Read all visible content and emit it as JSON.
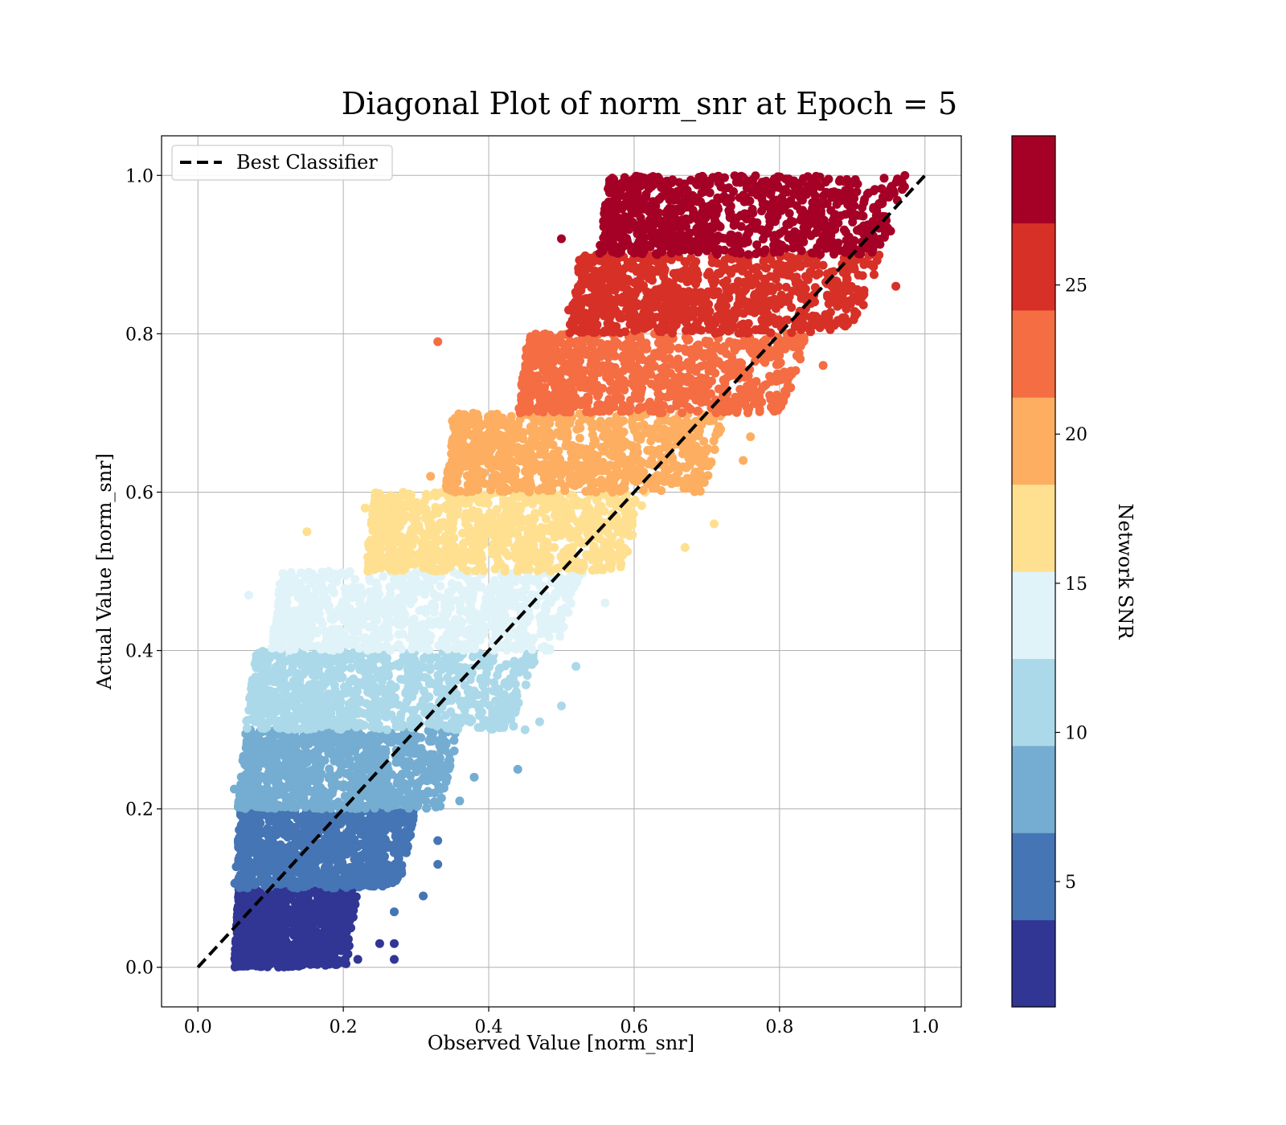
{
  "chart_data": {
    "type": "scatter",
    "title": "Diagonal Plot of norm_snr at Epoch = 5",
    "xlabel": "Observed Value [norm_snr]",
    "ylabel": "Actual Value [norm_snr]",
    "xlim": [
      -0.05,
      1.05
    ],
    "ylim": [
      -0.05,
      1.05
    ],
    "xticks": [
      0.0,
      0.2,
      0.4,
      0.6,
      0.8,
      1.0
    ],
    "yticks": [
      0.0,
      0.2,
      0.4,
      0.6,
      0.8,
      1.0
    ],
    "xtick_labels": [
      "0.0",
      "0.2",
      "0.4",
      "0.6",
      "0.8",
      "1.0"
    ],
    "ytick_labels": [
      "0.0",
      "0.2",
      "0.4",
      "0.6",
      "0.8",
      "1.0"
    ],
    "grid": true,
    "legend": {
      "placement": "top-left",
      "entries": [
        {
          "label": "Best Classifier",
          "style": "dashed",
          "color": "#000000"
        }
      ]
    },
    "reference_line": {
      "name": "Best Classifier",
      "x": [
        0.0,
        1.0
      ],
      "y": [
        0.0,
        1.0
      ]
    },
    "colorbar": {
      "label": "Network SNR",
      "range": [
        0.8,
        30.0
      ],
      "ticks": [
        5,
        10,
        15,
        20,
        25
      ],
      "tick_labels": [
        "5",
        "10",
        "15",
        "20",
        "25"
      ],
      "colormap": "RdYlBu_r (10 discrete levels)",
      "colors": [
        "#313695",
        "#4575b4",
        "#74add1",
        "#abd9e9",
        "#e0f3f8",
        "#fee090",
        "#fdae61",
        "#f46d43",
        "#d73027",
        "#a50026"
      ]
    },
    "series": [
      {
        "band_y": [
          0.0,
          0.1
        ],
        "x_range": [
          0.05,
          0.22
        ],
        "color": "#313695",
        "outliers": [
          [
            0.27,
            0.01
          ],
          [
            0.22,
            0.01
          ],
          [
            0.27,
            0.03
          ],
          [
            0.25,
            0.03
          ]
        ]
      },
      {
        "band_y": [
          0.1,
          0.2
        ],
        "x_range": [
          0.05,
          0.3
        ],
        "color": "#4575b4",
        "outliers": [
          [
            0.31,
            0.09
          ],
          [
            0.33,
            0.13
          ],
          [
            0.33,
            0.16
          ],
          [
            0.27,
            0.07
          ]
        ]
      },
      {
        "band_y": [
          0.2,
          0.3
        ],
        "x_range": [
          0.055,
          0.36
        ],
        "color": "#74add1",
        "outliers": [
          [
            0.05,
            0.225
          ],
          [
            0.44,
            0.25
          ],
          [
            0.36,
            0.21
          ],
          [
            0.38,
            0.24
          ]
        ]
      },
      {
        "band_y": [
          0.3,
          0.4
        ],
        "x_range": [
          0.065,
          0.47
        ],
        "color": "#abd9e9",
        "outliers": [
          [
            0.52,
            0.38
          ],
          [
            0.5,
            0.33
          ],
          [
            0.47,
            0.31
          ],
          [
            0.45,
            0.3
          ]
        ]
      },
      {
        "band_y": [
          0.4,
          0.5
        ],
        "x_range": [
          0.1,
          0.53
        ],
        "color": "#e0f3f8",
        "outliers": [
          [
            0.07,
            0.47
          ],
          [
            0.15,
            0.49
          ],
          [
            0.56,
            0.46
          ],
          [
            0.18,
            0.5
          ]
        ]
      },
      {
        "band_y": [
          0.5,
          0.6
        ],
        "x_range": [
          0.23,
          0.62
        ],
        "color": "#fee090",
        "outliers": [
          [
            0.15,
            0.55
          ],
          [
            0.23,
            0.58
          ],
          [
            0.67,
            0.53
          ],
          [
            0.71,
            0.56
          ]
        ]
      },
      {
        "band_y": [
          0.6,
          0.7
        ],
        "x_range": [
          0.34,
          0.73
        ],
        "color": "#fdae61",
        "outliers": [
          [
            0.35,
            0.69
          ],
          [
            0.32,
            0.62
          ],
          [
            0.75,
            0.64
          ],
          [
            0.76,
            0.67
          ]
        ]
      },
      {
        "band_y": [
          0.7,
          0.8
        ],
        "x_range": [
          0.44,
          0.84
        ],
        "color": "#f46d43",
        "outliers": [
          [
            0.33,
            0.79
          ],
          [
            0.45,
            0.74
          ],
          [
            0.48,
            0.77
          ],
          [
            0.86,
            0.76
          ]
        ]
      },
      {
        "band_y": [
          0.8,
          0.9
        ],
        "x_range": [
          0.51,
          0.94
        ],
        "color": "#d73027",
        "outliers": [
          [
            0.53,
            0.84
          ],
          [
            0.51,
            0.83
          ],
          [
            0.96,
            0.86
          ],
          [
            0.57,
            0.88
          ]
        ]
      },
      {
        "band_y": [
          0.9,
          1.0
        ],
        "x_range": [
          0.55,
          0.98
        ],
        "color": "#a50026",
        "outliers": [
          [
            0.5,
            0.92
          ],
          [
            0.6,
            0.98
          ],
          [
            0.66,
            0.98
          ],
          [
            0.58,
            0.91
          ],
          [
            0.61,
            0.94
          ]
        ]
      }
    ]
  }
}
